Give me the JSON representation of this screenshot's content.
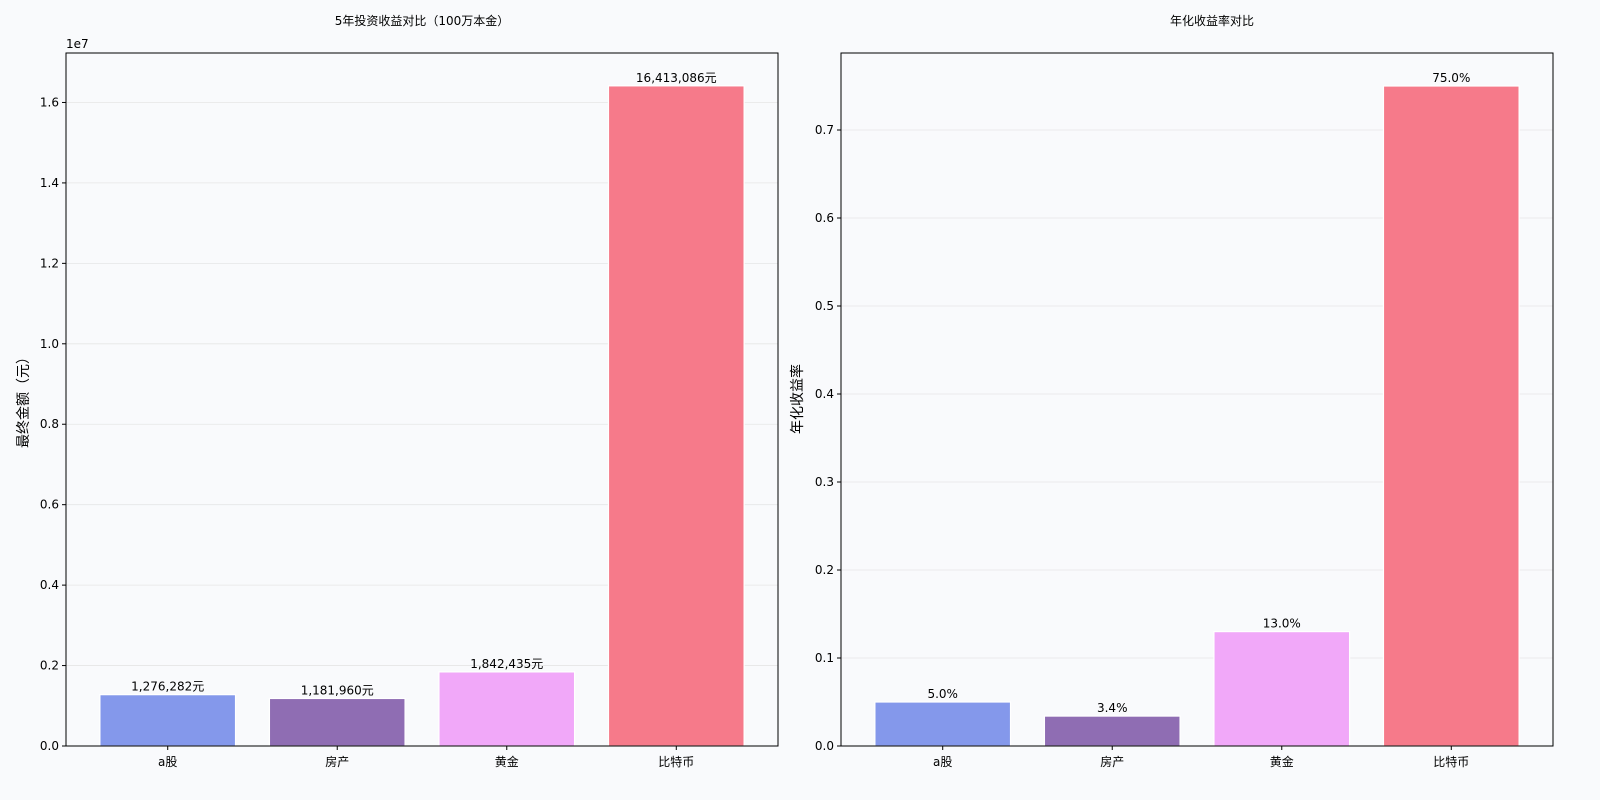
{
  "chart_data": [
    {
      "type": "bar",
      "title": "5年投资收益对比（100万本金）",
      "xlabel": "",
      "ylabel": "最终金额（元）",
      "offset_text": "1e7",
      "categories": [
        "a股",
        "房产",
        "黄金",
        "比特币"
      ],
      "values": [
        1276282,
        1181960,
        1842435,
        16413086
      ],
      "value_labels": [
        "1,276,282元",
        "1,181,960元",
        "1,842,435元",
        "16,413,086元"
      ],
      "ylim": [
        0,
        17230000
      ],
      "ytick_values": [
        0.0,
        2000000,
        4000000,
        6000000,
        8000000,
        10000000,
        12000000,
        14000000,
        16000000
      ],
      "ytick_labels": [
        "0.0",
        "0.2",
        "0.4",
        "0.6",
        "0.8",
        "1.0",
        "1.2",
        "1.4",
        "1.6"
      ],
      "colors": [
        "#8498eb",
        "#8f6db3",
        "#f1a8f9",
        "#f67a8a"
      ],
      "grid": "y"
    },
    {
      "type": "bar",
      "title": "年化收益率对比",
      "xlabel": "",
      "ylabel": "年化收益率",
      "categories": [
        "a股",
        "房产",
        "黄金",
        "比特币"
      ],
      "values": [
        0.05,
        0.034,
        0.13,
        0.75
      ],
      "value_labels": [
        "5.0%",
        "3.4%",
        "13.0%",
        "75.0%"
      ],
      "ylim": [
        0,
        0.7875
      ],
      "ytick_values": [
        0.0,
        0.1,
        0.2,
        0.3,
        0.4,
        0.5,
        0.6,
        0.7
      ],
      "ytick_labels": [
        "0.0",
        "0.1",
        "0.2",
        "0.3",
        "0.4",
        "0.5",
        "0.6",
        "0.7"
      ],
      "colors": [
        "#8498eb",
        "#8f6db3",
        "#f1a8f9",
        "#f67a8a"
      ],
      "grid": "y"
    }
  ]
}
